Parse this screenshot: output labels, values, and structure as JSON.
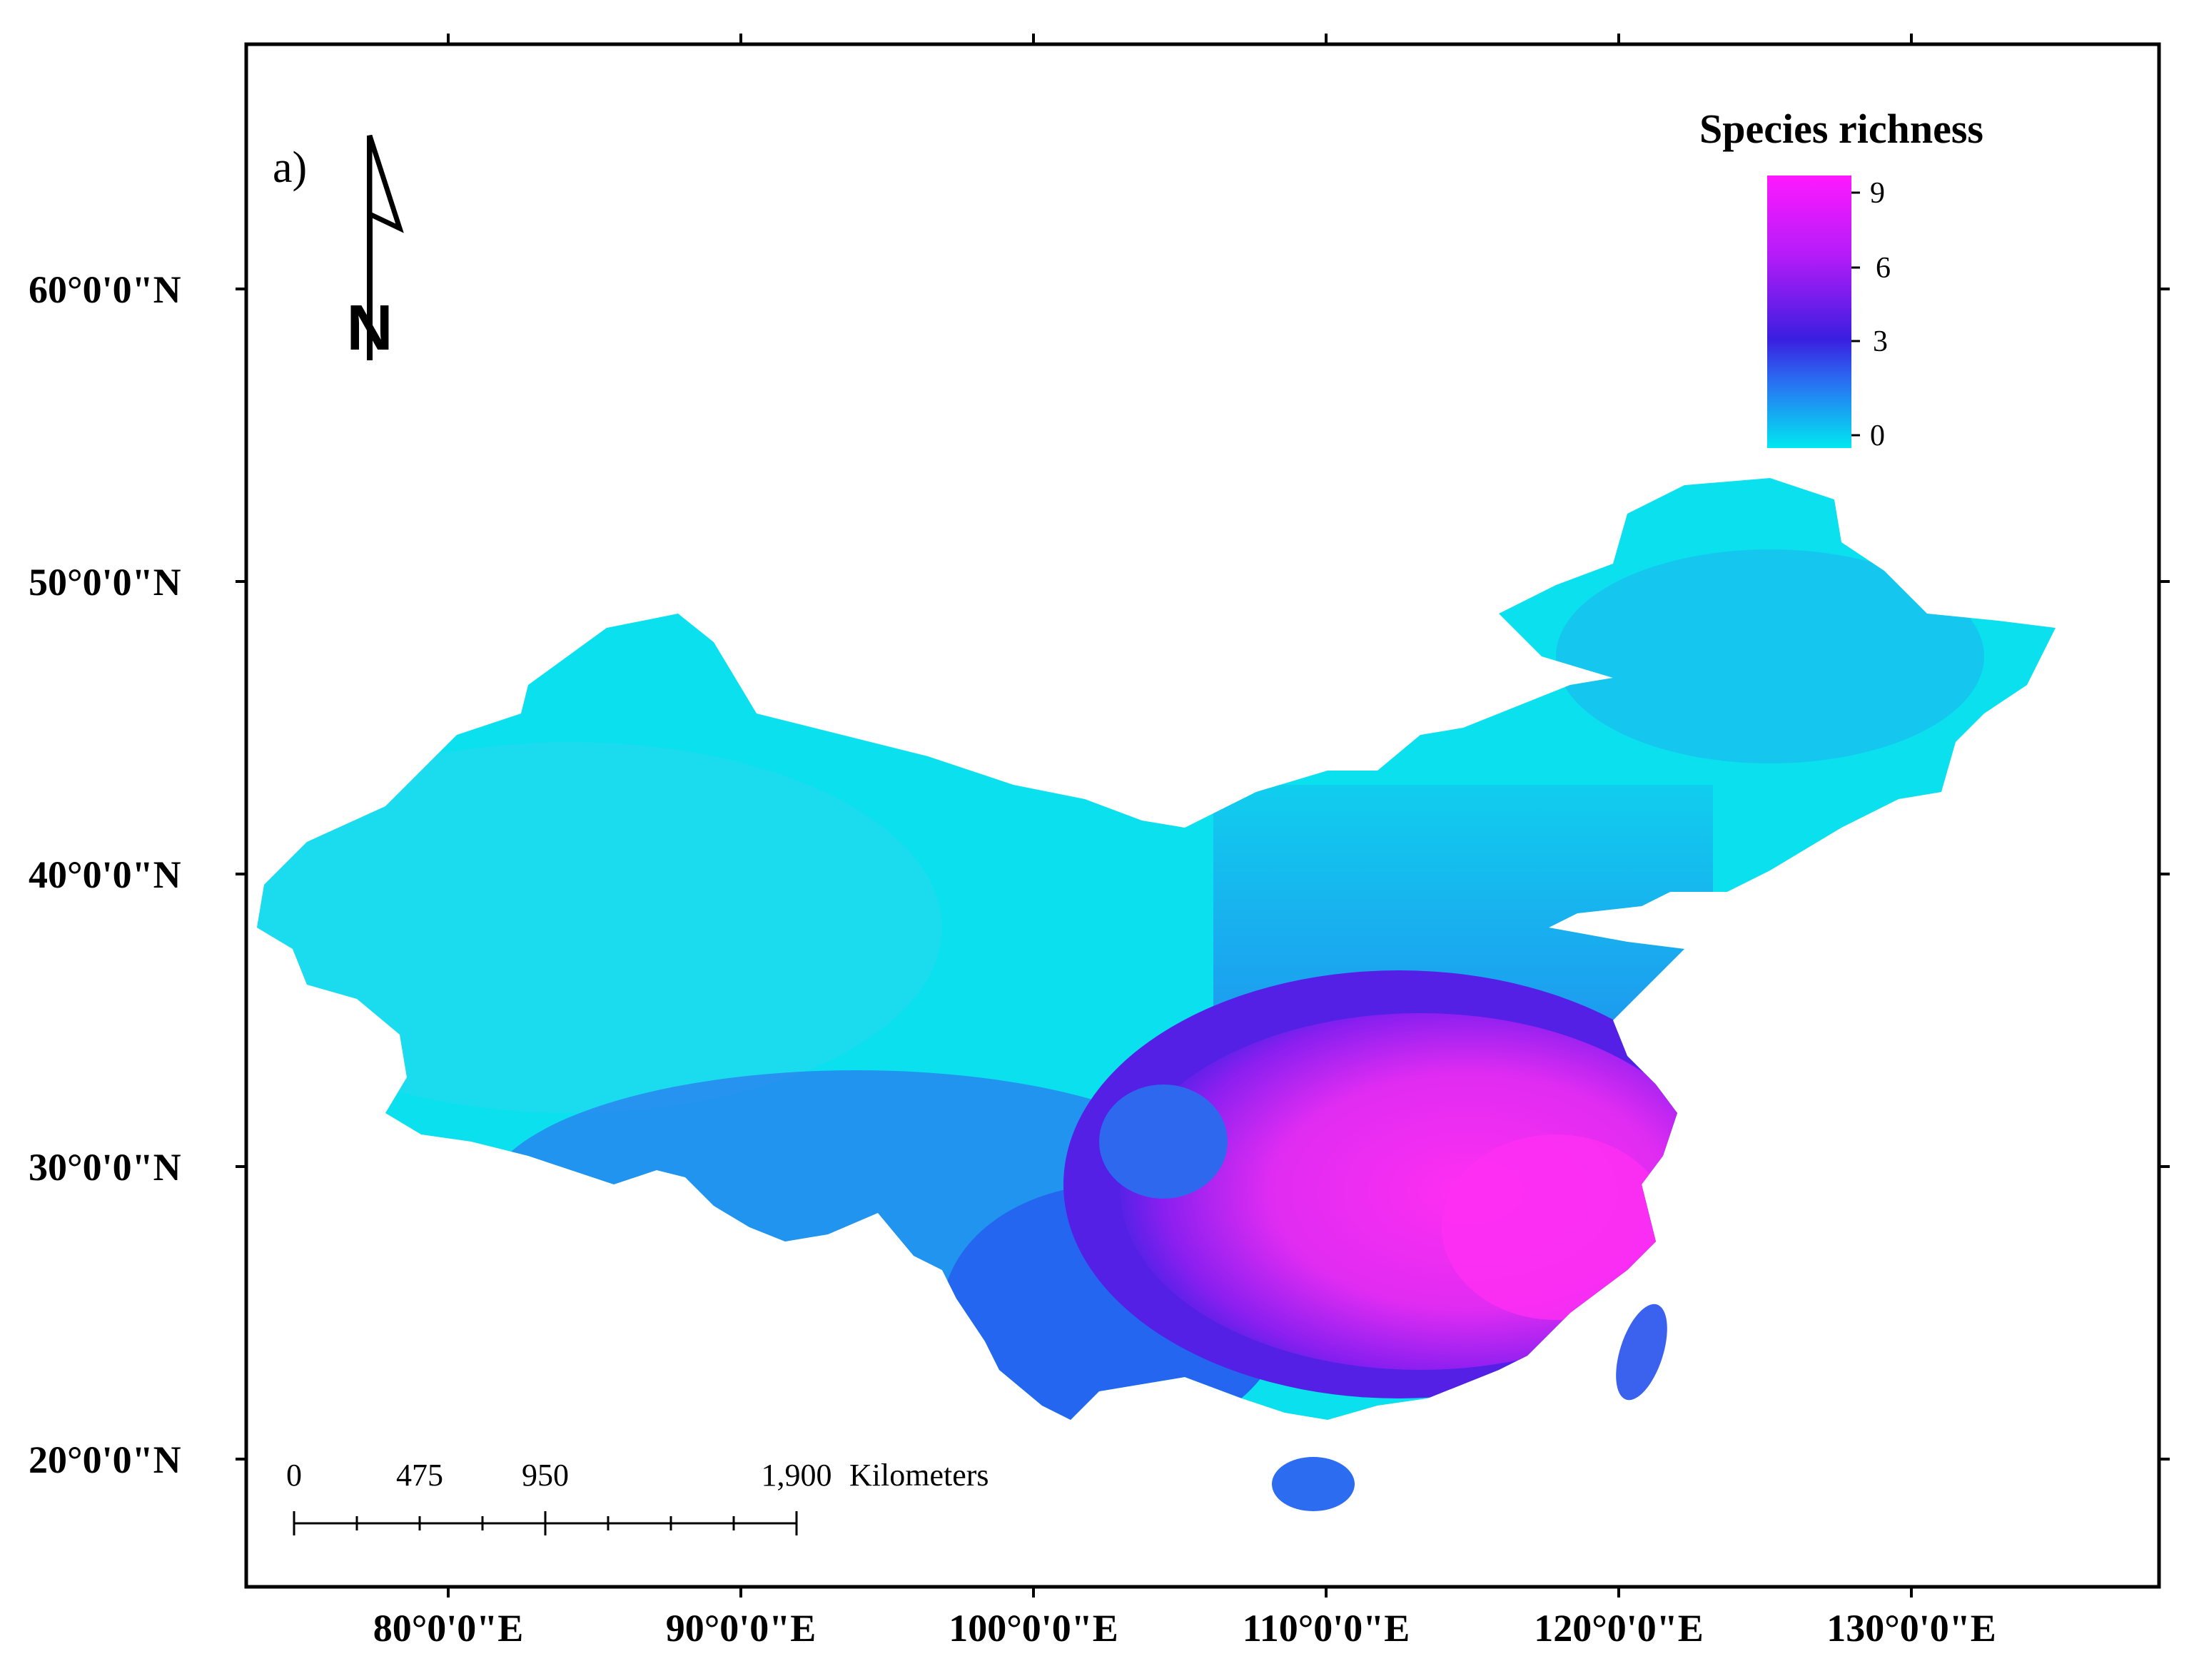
{
  "panel_label": "a)",
  "north_arrow_label": "N",
  "axes": {
    "latitude_ticks": [
      "60°0'0\"N",
      "50°0'0\"N",
      "40°0'0\"N",
      "30°0'0\"N",
      "20°0'0\"N"
    ],
    "longitude_ticks": [
      "80°0'0\"E",
      "90°0'0\"E",
      "100°0'0\"E",
      "110°0'0\"E",
      "120°0'0\"E",
      "130°0'0\"E"
    ]
  },
  "legend": {
    "title": "Species richness",
    "ticks": [
      "9",
      "6",
      "3",
      "0"
    ],
    "colors": {
      "high": "#ff19ff",
      "mid": "#3a1ee0",
      "low": "#00e8f0"
    }
  },
  "scale_bar": {
    "labels": [
      "0",
      "475",
      "950",
      "1,900"
    ],
    "unit": "Kilometers"
  },
  "colors": {
    "land_base": "#0ae0ee",
    "medium_richness": "#2b6ff0",
    "high_richness": "#6a1cf0",
    "peak_richness": "#f02bf0",
    "frame": "#000000"
  }
}
